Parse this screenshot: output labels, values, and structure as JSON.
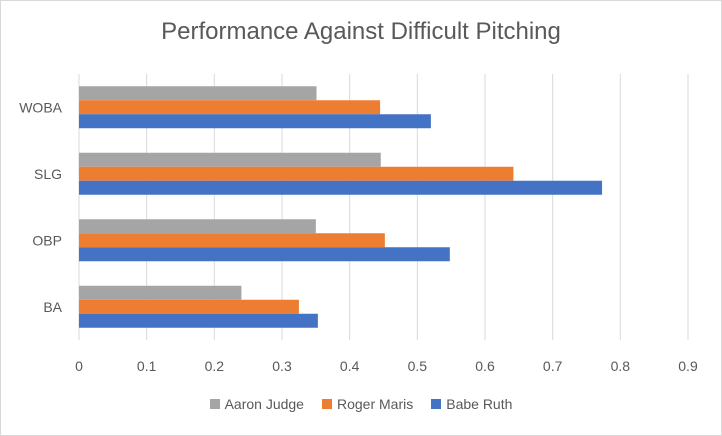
{
  "chart_data": {
    "type": "bar",
    "orientation": "horizontal",
    "title": "Performance Against Difficult Pitching",
    "categories": [
      "BA",
      "OBP",
      "SLG",
      "WOBA"
    ],
    "series": [
      {
        "name": "Babe Ruth",
        "color": "#4472c4",
        "values": [
          0.353,
          0.548,
          0.773,
          0.52
        ]
      },
      {
        "name": "Roger Maris",
        "color": "#ed7d31",
        "values": [
          0.325,
          0.452,
          0.642,
          0.445
        ]
      },
      {
        "name": "Aaron Judge",
        "color": "#a5a5a5",
        "values": [
          0.24,
          0.35,
          0.446,
          0.351
        ]
      }
    ],
    "xlim": [
      0,
      0.9
    ],
    "xticks": [
      "0",
      "0.1",
      "0.2",
      "0.3",
      "0.4",
      "0.5",
      "0.6",
      "0.7",
      "0.8",
      "0.9"
    ],
    "grid": true,
    "legend_position": "bottom"
  }
}
